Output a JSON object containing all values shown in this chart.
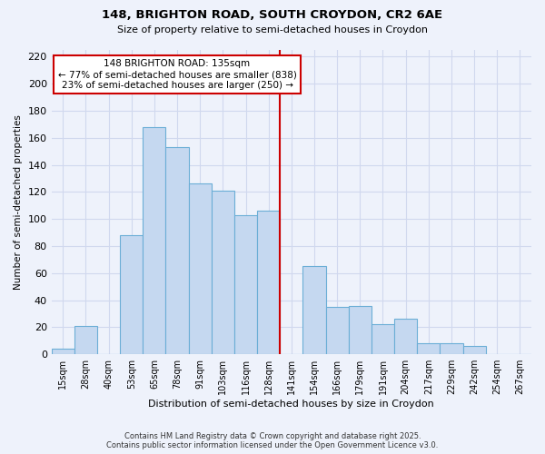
{
  "title1": "148, BRIGHTON ROAD, SOUTH CROYDON, CR2 6AE",
  "title2": "Size of property relative to semi-detached houses in Croydon",
  "xlabel": "Distribution of semi-detached houses by size in Croydon",
  "ylabel": "Number of semi-detached properties",
  "bin_labels": [
    "15sqm",
    "28sqm",
    "40sqm",
    "53sqm",
    "65sqm",
    "78sqm",
    "91sqm",
    "103sqm",
    "116sqm",
    "128sqm",
    "141sqm",
    "154sqm",
    "166sqm",
    "179sqm",
    "191sqm",
    "204sqm",
    "217sqm",
    "229sqm",
    "242sqm",
    "254sqm",
    "267sqm"
  ],
  "bar_heights": [
    4,
    21,
    0,
    88,
    168,
    153,
    126,
    121,
    103,
    106,
    0,
    65,
    35,
    36,
    22,
    26,
    8,
    8,
    6,
    0,
    0
  ],
  "bar_color": "#c5d8f0",
  "bar_edge_color": "#6baed6",
  "vline_x_index": 10,
  "annotation_title": "148 BRIGHTON ROAD: 135sqm",
  "annotation_line1": "← 77% of semi-detached houses are smaller (838)",
  "annotation_line2": "23% of semi-detached houses are larger (250) →",
  "ylim": [
    0,
    225
  ],
  "yticks": [
    0,
    20,
    40,
    60,
    80,
    100,
    120,
    140,
    160,
    180,
    200,
    220
  ],
  "footer1": "Contains HM Land Registry data © Crown copyright and database right 2025.",
  "footer2": "Contains public sector information licensed under the Open Government Licence v3.0.",
  "bg_color": "#eef2fb",
  "grid_color": "#d0d8ee"
}
